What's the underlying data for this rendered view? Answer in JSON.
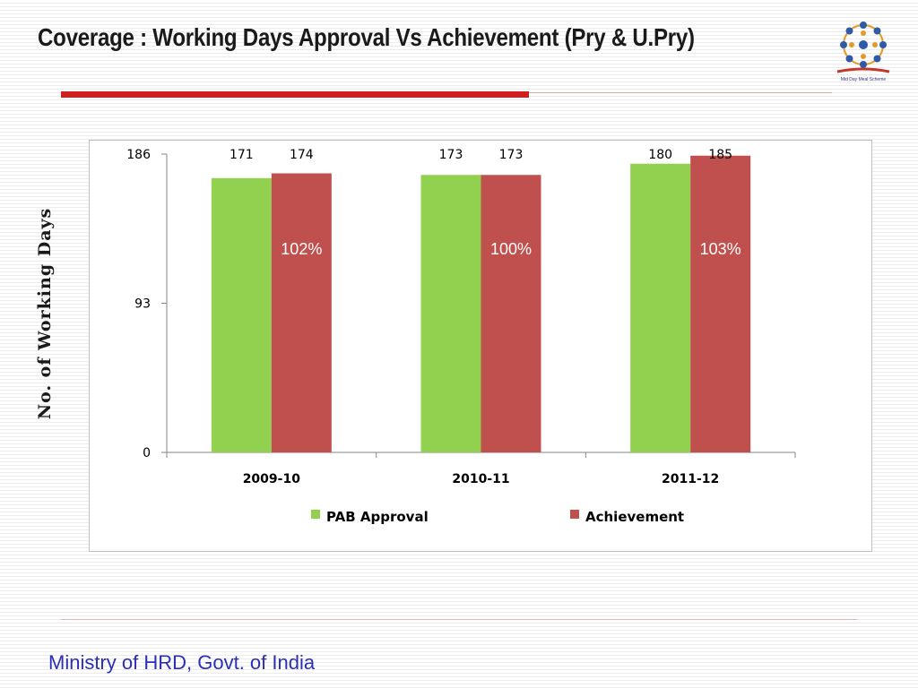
{
  "slide": {
    "title": "Coverage : Working Days Approval Vs Achievement (Pry & U.Pry)",
    "footer": "Ministry of HRD, Govt. of India",
    "logo_icon": "mid-day-meal-logo-icon",
    "logo_caption": "Mid Day Meal Scheme"
  },
  "chart_data": {
    "type": "bar",
    "ylabel": "No. of Working Days",
    "categories": [
      "2009-10",
      "2010-11",
      "2011-12"
    ],
    "series": [
      {
        "name": "PAB Approval",
        "color": "#92d050",
        "values": [
          171,
          173,
          180
        ]
      },
      {
        "name": "Achievement",
        "color": "#c0504d",
        "values": [
          174,
          173,
          185
        ]
      }
    ],
    "ylim": [
      0,
      186
    ],
    "yticks": [
      "0",
      "93",
      "186"
    ],
    "bar_labels": [
      [
        "171",
        "173",
        "180"
      ],
      [
        "174",
        "173",
        "185"
      ]
    ],
    "percent_labels": [
      "102%",
      "100%",
      "103%"
    ],
    "grid": false,
    "legend_position": "bottom"
  }
}
